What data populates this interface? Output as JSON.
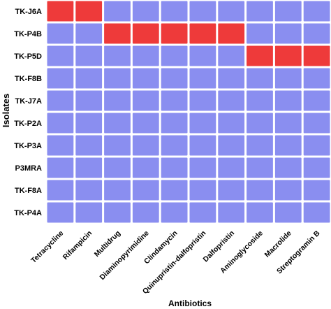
{
  "chart_data": {
    "type": "heatmap",
    "xlabel": "Antibiotics",
    "ylabel": "Isolates",
    "columns": [
      "Tetracycline",
      "Rifampicin",
      "Multidrug",
      "Diaminopyrimidine",
      "Clindamycin",
      "Quinupristin-dalfopristin",
      "Dalfopristin",
      "Aminoglycoside",
      "Macrolide",
      "Streptogramin B"
    ],
    "rows": [
      "TK-J6A",
      "TK-P4B",
      "TK-P5D",
      "TK-F8B",
      "TK-J7A",
      "TK-P2A",
      "TK-P3A",
      "P3MRA",
      "TK-F8A",
      "TK-P4A"
    ],
    "values": [
      [
        1,
        1,
        0,
        0,
        0,
        0,
        0,
        0,
        0,
        0
      ],
      [
        0,
        0,
        1,
        1,
        1,
        1,
        1,
        0,
        0,
        0
      ],
      [
        0,
        0,
        0,
        0,
        0,
        0,
        0,
        1,
        1,
        1
      ],
      [
        0,
        0,
        0,
        0,
        0,
        0,
        0,
        0,
        0,
        0
      ],
      [
        0,
        0,
        0,
        0,
        0,
        0,
        0,
        0,
        0,
        0
      ],
      [
        0,
        0,
        0,
        0,
        0,
        0,
        0,
        0,
        0,
        0
      ],
      [
        0,
        0,
        0,
        0,
        0,
        0,
        0,
        0,
        0,
        0
      ],
      [
        0,
        0,
        0,
        0,
        0,
        0,
        0,
        0,
        0,
        0
      ],
      [
        0,
        0,
        0,
        0,
        0,
        0,
        0,
        0,
        0,
        0
      ],
      [
        0,
        0,
        0,
        0,
        0,
        0,
        0,
        0,
        0,
        0
      ]
    ],
    "colors": {
      "present": "#ee3a3a",
      "absent": "#8a8ef0",
      "grid": "#ffffff"
    },
    "legend": "none",
    "grid": true
  }
}
